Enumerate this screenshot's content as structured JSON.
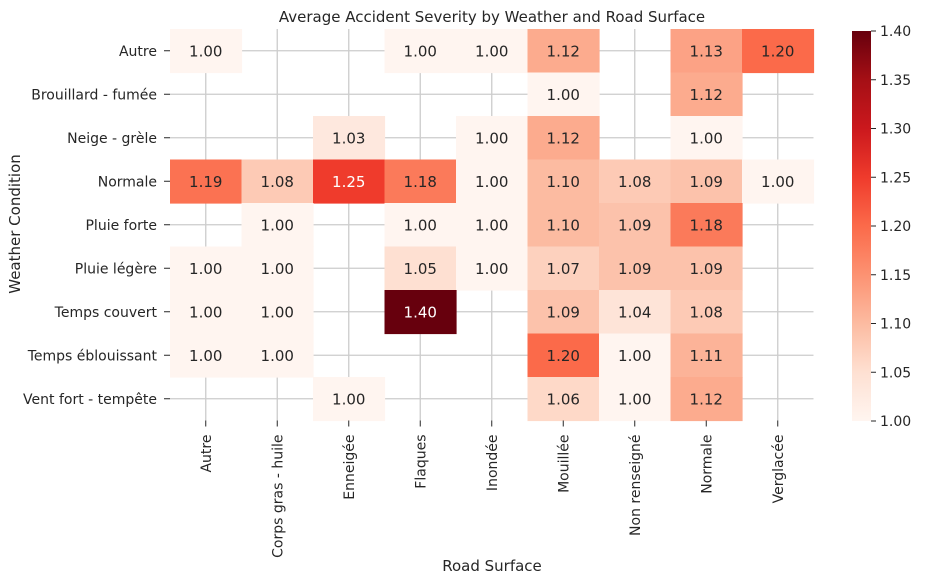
{
  "chart_data": {
    "type": "heatmap",
    "title": "Average Accident Severity by Weather and Road Surface",
    "xlabel": "Road Surface",
    "ylabel": "Weather Condition",
    "x_categories": [
      "Autre",
      "Corps gras - huile",
      "Enneigée",
      "Flaques",
      "Inondée",
      "Mouillée",
      "Non renseigné",
      "Normale",
      "Verglacée"
    ],
    "y_categories": [
      "Autre",
      "Brouillard - fumée",
      "Neige - grèle",
      "Normale",
      "Pluie forte",
      "Pluie légère",
      "Temps couvert",
      "Temps éblouissant",
      "Vent fort - tempête"
    ],
    "values": [
      [
        1.0,
        null,
        null,
        1.0,
        1.0,
        1.12,
        null,
        1.13,
        1.2
      ],
      [
        null,
        null,
        null,
        null,
        null,
        1.0,
        null,
        1.12,
        null
      ],
      [
        null,
        null,
        1.03,
        null,
        1.0,
        1.12,
        null,
        1.0,
        null
      ],
      [
        1.19,
        1.08,
        1.25,
        1.18,
        1.0,
        1.1,
        1.08,
        1.09,
        1.0
      ],
      [
        null,
        1.0,
        null,
        1.0,
        1.0,
        1.1,
        1.09,
        1.18,
        null
      ],
      [
        1.0,
        1.0,
        null,
        1.05,
        1.0,
        1.07,
        1.09,
        1.09,
        null
      ],
      [
        1.0,
        1.0,
        null,
        1.4,
        null,
        1.09,
        1.04,
        1.08,
        null
      ],
      [
        1.0,
        1.0,
        null,
        null,
        null,
        1.2,
        1.0,
        1.11,
        null
      ],
      [
        null,
        null,
        1.0,
        null,
        null,
        1.06,
        1.0,
        1.12,
        null
      ]
    ],
    "value_format": "0.00",
    "colorbar": {
      "min": 1.0,
      "max": 1.4,
      "ticks": [
        "1.00",
        "1.05",
        "1.10",
        "1.15",
        "1.20",
        "1.25",
        "1.30",
        "1.35",
        "1.40"
      ],
      "colormap": "Reds",
      "stops": [
        "#fff5f0",
        "#fee0d2",
        "#fcbba1",
        "#fc9272",
        "#fb6a4a",
        "#ef3b2c",
        "#cb181d",
        "#a50f15",
        "#67000d"
      ]
    },
    "grid": true,
    "grid_color": "#cccccc"
  }
}
